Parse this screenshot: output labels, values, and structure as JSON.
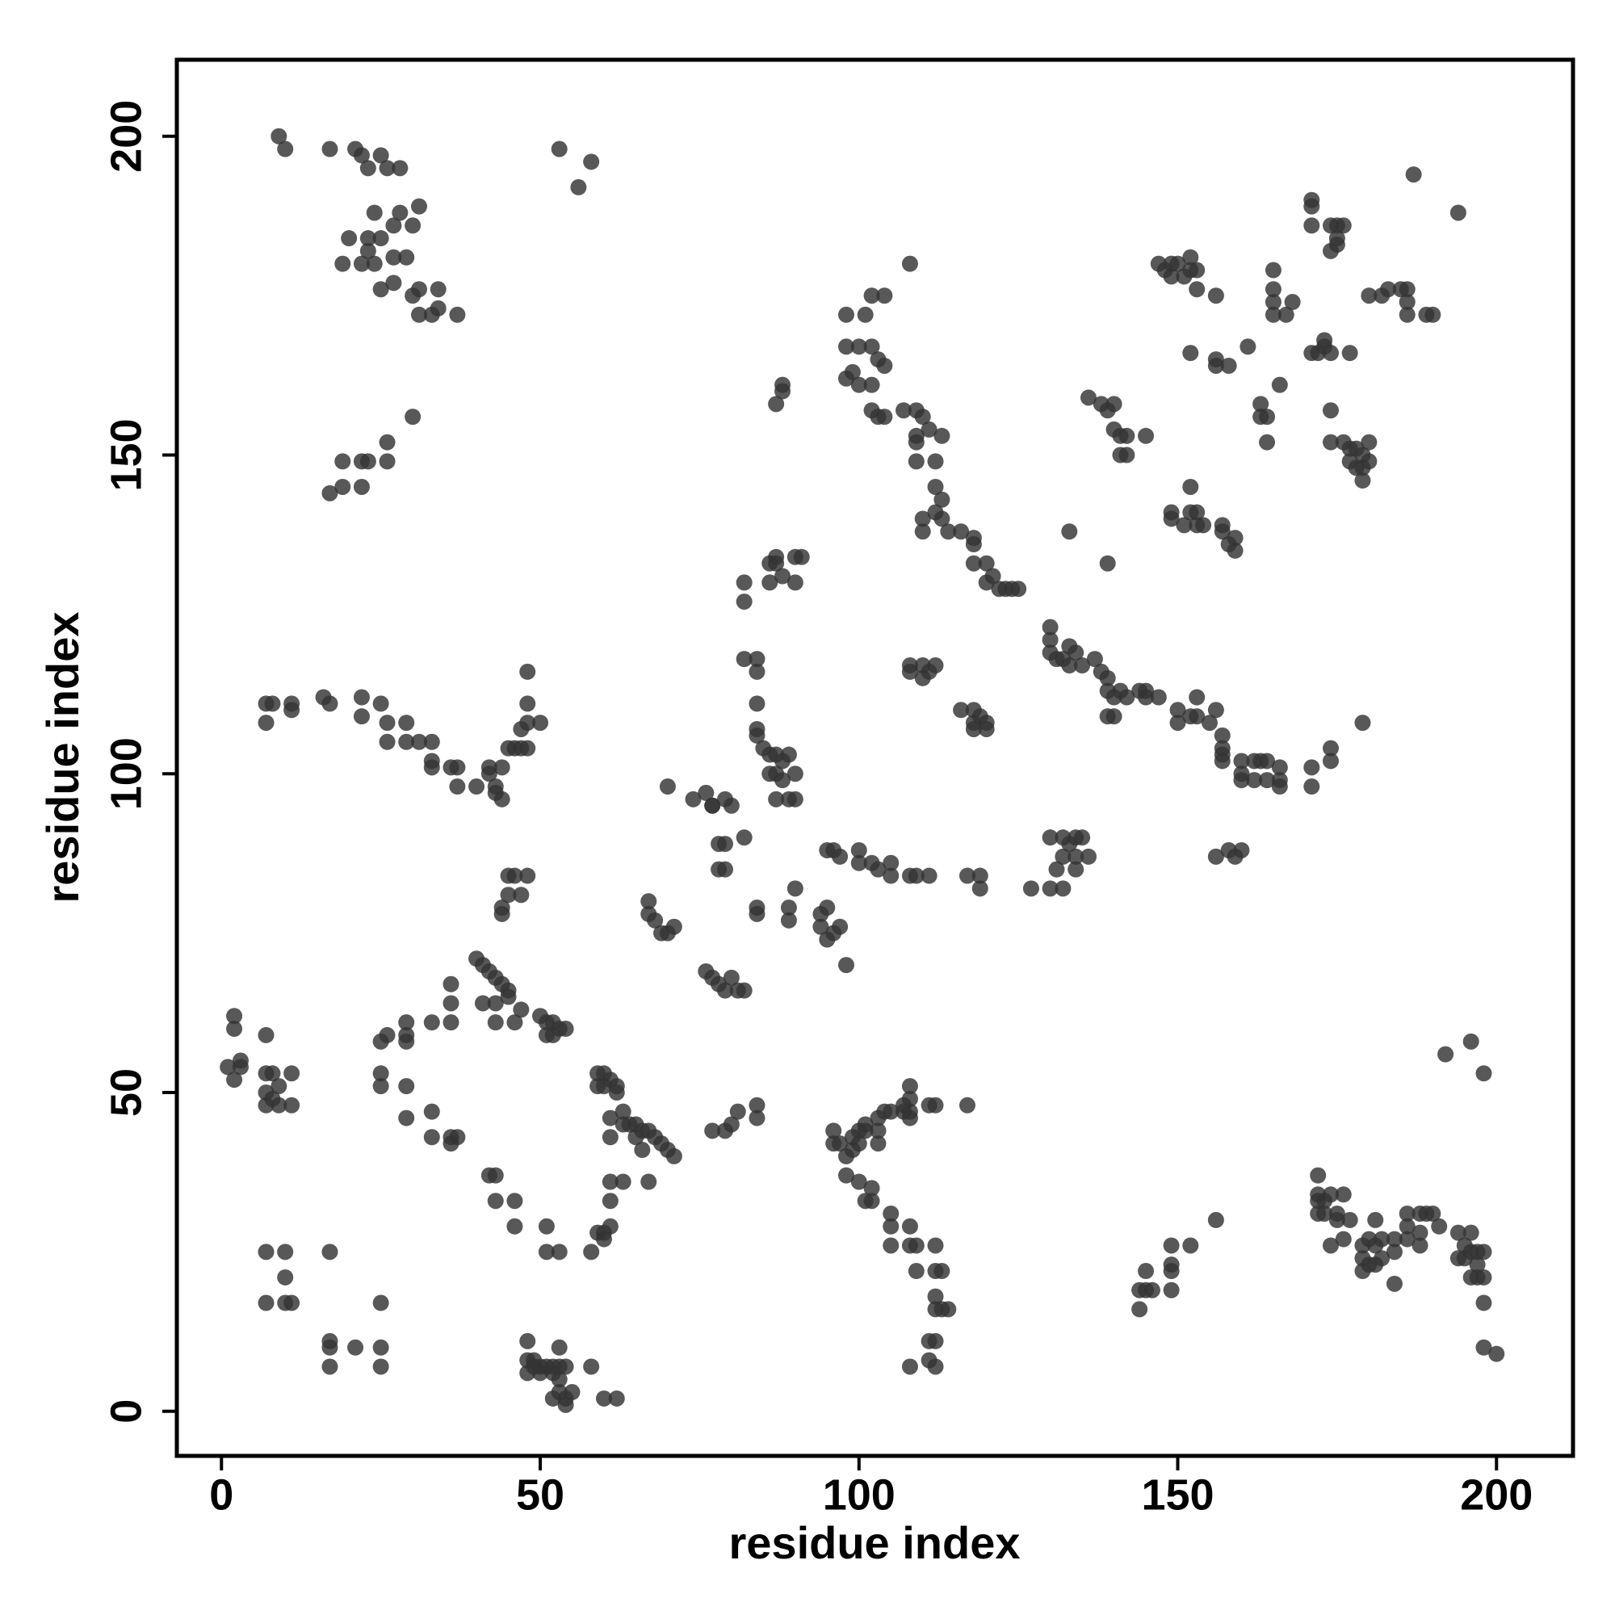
{
  "chart_data": {
    "type": "scatter",
    "xlabel": "residue index",
    "ylabel": "residue index",
    "color": "#333333",
    "xlim": [
      -7,
      212
    ],
    "ylim": [
      -7,
      212
    ],
    "xticks": [
      0,
      50,
      100,
      150,
      200
    ],
    "yticks": [
      0,
      50,
      100,
      150,
      200
    ],
    "grid": false,
    "x": [
      9,
      10,
      17,
      21,
      22,
      25,
      23,
      26,
      28,
      24,
      28,
      31,
      30,
      27,
      20,
      23,
      25,
      23,
      27,
      29,
      19,
      22,
      24,
      30,
      31,
      34,
      25,
      27,
      31,
      33,
      34,
      37,
      17,
      19,
      19,
      22,
      22,
      23,
      26,
      26,
      30,
      53,
      58,
      56,
      7,
      7,
      8,
      11,
      11,
      16,
      17,
      22,
      22,
      25,
      26,
      26,
      29,
      29,
      31,
      33,
      33,
      33,
      36,
      37,
      37,
      40,
      42,
      42,
      43,
      43,
      44,
      44,
      45,
      47,
      48,
      48,
      48,
      48,
      47,
      50,
      46,
      45,
      46,
      48,
      45,
      47,
      44,
      44,
      1,
      2,
      2,
      2,
      3,
      3,
      7,
      7,
      7,
      8,
      8,
      9,
      9,
      11,
      11,
      7,
      25,
      26,
      29,
      29,
      29,
      25,
      25,
      29,
      29,
      33,
      33,
      36,
      36,
      37,
      42,
      43,
      43,
      46,
      46,
      51,
      51,
      53,
      58,
      59,
      60,
      61,
      60,
      61,
      61,
      63,
      67,
      36,
      36,
      36,
      33,
      40,
      41,
      42,
      43,
      44,
      45,
      45,
      43,
      41,
      47,
      43,
      46,
      50,
      51,
      52,
      53,
      54,
      51,
      52,
      59,
      60,
      59,
      60,
      61,
      62,
      62,
      61,
      63,
      63,
      64,
      65,
      66,
      67,
      65,
      68,
      69,
      70,
      71,
      66,
      61,
      70,
      74,
      76,
      77,
      79,
      80,
      77,
      78,
      79,
      78,
      79,
      82,
      76,
      77,
      78,
      79,
      81,
      80,
      82,
      67,
      67,
      68,
      69,
      70,
      71,
      84,
      84,
      89,
      89,
      90,
      95,
      94,
      94,
      95,
      96,
      97,
      98,
      77,
      79,
      80,
      81,
      84,
      84,
      82,
      82,
      82,
      84,
      84,
      86,
      86,
      87,
      87,
      88,
      90,
      90,
      91,
      87,
      88,
      88,
      84,
      84,
      84,
      85,
      86,
      87,
      86,
      87,
      88,
      88,
      89,
      90,
      89,
      87,
      90,
      98,
      101,
      102,
      104,
      98,
      100,
      102,
      103,
      104,
      99,
      98,
      100,
      102,
      102,
      103,
      104,
      107,
      109,
      110,
      111,
      109,
      109,
      113,
      109,
      112,
      112,
      113,
      112,
      113,
      110,
      110,
      114,
      116,
      118,
      118,
      118,
      120,
      121,
      120,
      123,
      122,
      124,
      125,
      108,
      108,
      108,
      110,
      111,
      112,
      110,
      116,
      118,
      118,
      118,
      120,
      120,
      119,
      95,
      96,
      97,
      100,
      100,
      102,
      103,
      105,
      105,
      108,
      109,
      111,
      117,
      119,
      119,
      127,
      130,
      132,
      131,
      132,
      133,
      134,
      134,
      134,
      135,
      136,
      132,
      130,
      130,
      130,
      130,
      131,
      132,
      133,
      133,
      134,
      135,
      137,
      138,
      139,
      139,
      140,
      141,
      142,
      144,
      145,
      145,
      147,
      150,
      150,
      152,
      153,
      153,
      155,
      156,
      157,
      157,
      157,
      157,
      160,
      160,
      160,
      162,
      162,
      163,
      164,
      164,
      166,
      166,
      166,
      171,
      171,
      174,
      174,
      179,
      140,
      139,
      156,
      158,
      159,
      160,
      133,
      139,
      136,
      138,
      139,
      140,
      140,
      141,
      141,
      142,
      142,
      145,
      147,
      148,
      149,
      149,
      150,
      151,
      152,
      152,
      153,
      153,
      156,
      152,
      156,
      156,
      158,
      161,
      149,
      149,
      151,
      152,
      152,
      153,
      153,
      154,
      157,
      157,
      158,
      159,
      159,
      163,
      163,
      164,
      164,
      165,
      165,
      165,
      165,
      167,
      168,
      166,
      171,
      171,
      171,
      171,
      172,
      173,
      173,
      174,
      174,
      174,
      175,
      175,
      176,
      175,
      177,
      180,
      182,
      183,
      185,
      186,
      186,
      186,
      189,
      190,
      187,
      194,
      174,
      174,
      176,
      177,
      177,
      178,
      178,
      179,
      179,
      179,
      180,
      180,
      144,
      144,
      145,
      145,
      146,
      149,
      149,
      149,
      149,
      152,
      156,
      172,
      172,
      172,
      172,
      173,
      173,
      174,
      174,
      175,
      175,
      176,
      176,
      177,
      179,
      179,
      179,
      180,
      180,
      181,
      181,
      181,
      182,
      182,
      184,
      184,
      184,
      186,
      186,
      186,
      188,
      188,
      188,
      189,
      190,
      191,
      194,
      194,
      195,
      195,
      196,
      196,
      196,
      197,
      197,
      197,
      198,
      198,
      198,
      198,
      200,
      196,
      192,
      198,
      96,
      96,
      97,
      98,
      98,
      99,
      99,
      100,
      100,
      101,
      101,
      100,
      101,
      102,
      102,
      103,
      103,
      103,
      104,
      105,
      105,
      105,
      105,
      107,
      107,
      108,
      108,
      108,
      108,
      108,
      108,
      109,
      109,
      111,
      112,
      112,
      112,
      113,
      112,
      112,
      113,
      114,
      111,
      112,
      111,
      112,
      108,
      117,
      7,
      7,
      10,
      10,
      10,
      11,
      17,
      17,
      17,
      17,
      21,
      25,
      25,
      25,
      48,
      48,
      48,
      49,
      49,
      50,
      50,
      51,
      52,
      53,
      53,
      53,
      54,
      52,
      52,
      53,
      54,
      54,
      55,
      58,
      60,
      62
    ],
    "values": [
      200,
      198,
      198,
      198,
      197,
      197,
      195,
      195,
      195,
      188,
      188,
      189,
      186,
      186,
      184,
      184,
      184,
      182,
      181,
      181,
      180,
      180,
      180,
      175,
      176,
      176,
      176,
      177,
      172,
      172,
      173,
      172,
      144,
      145,
      149,
      145,
      149,
      149,
      149,
      152,
      156,
      198,
      196,
      192,
      111,
      108,
      111,
      111,
      110,
      112,
      111,
      112,
      109,
      111,
      108,
      105,
      108,
      105,
      105,
      105,
      102,
      101,
      101,
      101,
      98,
      98,
      100,
      101,
      98,
      97,
      96,
      101,
      104,
      107,
      108,
      104,
      111,
      116,
      104,
      108,
      104,
      84,
      84,
      84,
      81,
      81,
      78,
      79,
      54,
      52,
      60,
      62,
      55,
      54,
      50,
      53,
      48,
      49,
      53,
      48,
      51,
      53,
      48,
      59,
      58,
      59,
      59,
      61,
      58,
      53,
      51,
      51,
      46,
      47,
      43,
      42,
      43,
      43,
      37,
      37,
      33,
      33,
      29,
      29,
      25,
      25,
      25,
      28,
      28,
      29,
      27,
      36,
      33,
      36,
      36,
      61,
      64,
      67,
      61,
      71,
      70,
      69,
      68,
      67,
      66,
      65,
      64,
      64,
      63,
      61,
      61,
      62,
      61,
      61,
      60,
      60,
      59,
      59,
      53,
      53,
      51,
      51,
      52,
      51,
      50,
      46,
      47,
      45,
      45,
      45,
      44,
      44,
      43,
      43,
      42,
      41,
      40,
      41,
      43,
      98,
      96,
      97,
      95,
      96,
      95,
      95,
      89,
      89,
      85,
      85,
      90,
      69,
      68,
      67,
      66,
      66,
      68,
      66,
      80,
      78,
      77,
      75,
      75,
      76,
      79,
      78,
      79,
      77,
      82,
      79,
      78,
      76,
      74,
      75,
      76,
      70,
      44,
      44,
      45,
      47,
      48,
      46,
      130,
      127,
      118,
      116,
      118,
      133,
      130,
      134,
      133,
      131,
      134,
      130,
      134,
      158,
      160,
      161,
      111,
      107,
      106,
      104,
      103,
      103,
      100,
      100,
      102,
      99,
      103,
      100,
      96,
      96,
      96,
      172,
      172,
      175,
      175,
      167,
      167,
      167,
      165,
      164,
      163,
      162,
      161,
      161,
      157,
      156,
      156,
      157,
      157,
      156,
      154,
      153,
      152,
      153,
      149,
      149,
      145,
      143,
      141,
      140,
      140,
      138,
      138,
      138,
      137,
      136,
      133,
      133,
      131,
      130,
      129,
      129,
      129,
      129,
      180,
      117,
      116,
      117,
      116,
      117,
      115,
      110,
      110,
      108,
      107,
      108,
      107,
      109,
      88,
      88,
      87,
      88,
      86,
      86,
      85,
      86,
      84,
      84,
      84,
      84,
      84,
      84,
      82,
      82,
      82,
      82,
      85,
      87,
      89,
      87,
      85,
      90,
      90,
      87,
      90,
      90,
      123,
      121,
      119,
      118,
      118,
      120,
      117,
      119,
      117,
      118,
      116,
      115,
      113,
      112,
      113,
      112,
      113,
      112,
      113,
      112,
      110,
      108,
      109,
      109,
      112,
      108,
      110,
      106,
      103,
      102,
      104,
      102,
      100,
      99,
      99,
      102,
      102,
      99,
      102,
      99,
      98,
      101,
      101,
      98,
      102,
      104,
      108,
      109,
      109,
      87,
      88,
      87,
      88,
      138,
      133,
      159,
      158,
      157,
      158,
      154,
      153,
      150,
      153,
      150,
      153,
      180,
      179,
      180,
      178,
      180,
      178,
      179,
      181,
      179,
      176,
      175,
      166,
      165,
      164,
      164,
      167,
      141,
      140,
      139,
      141,
      145,
      141,
      139,
      139,
      139,
      138,
      136,
      135,
      137,
      158,
      156,
      156,
      152,
      176,
      174,
      172,
      179,
      172,
      174,
      161,
      190,
      189,
      186,
      166,
      166,
      168,
      167,
      166,
      186,
      182,
      184,
      186,
      186,
      183,
      166,
      175,
      175,
      176,
      176,
      176,
      174,
      172,
      172,
      172,
      194,
      188,
      157,
      152,
      152,
      151,
      149,
      151,
      148,
      150,
      148,
      146,
      152,
      149,
      16,
      19,
      19,
      22,
      19,
      19,
      22,
      23,
      26,
      26,
      30,
      37,
      34,
      33,
      31,
      33,
      31,
      34,
      26,
      30,
      31,
      34,
      27,
      30,
      22,
      24,
      26,
      23,
      27,
      30,
      23,
      26,
      24,
      27,
      25,
      27,
      20,
      27,
      29,
      31,
      31,
      28,
      26,
      31,
      31,
      29,
      28,
      24,
      26,
      24,
      25,
      21,
      28,
      25,
      23,
      21,
      25,
      21,
      17,
      10,
      9,
      58,
      56,
      53,
      44,
      42,
      42,
      40,
      37,
      43,
      41,
      44,
      42,
      44,
      45,
      36,
      33,
      33,
      35,
      42,
      44,
      46,
      47,
      47,
      31,
      29,
      26,
      47,
      48,
      47,
      49,
      46,
      51,
      29,
      26,
      26,
      22,
      48,
      48,
      26,
      22,
      22,
      18,
      16,
      16,
      16,
      11,
      11,
      8,
      7,
      7,
      48,
      25,
      17,
      25,
      21,
      17,
      17,
      25,
      11,
      10,
      7,
      10,
      17,
      10,
      7,
      11,
      8,
      6,
      8,
      7,
      7,
      6,
      7,
      7,
      10,
      7,
      5,
      7,
      6,
      2,
      3,
      2,
      1,
      3,
      7,
      2,
      2
    ]
  }
}
